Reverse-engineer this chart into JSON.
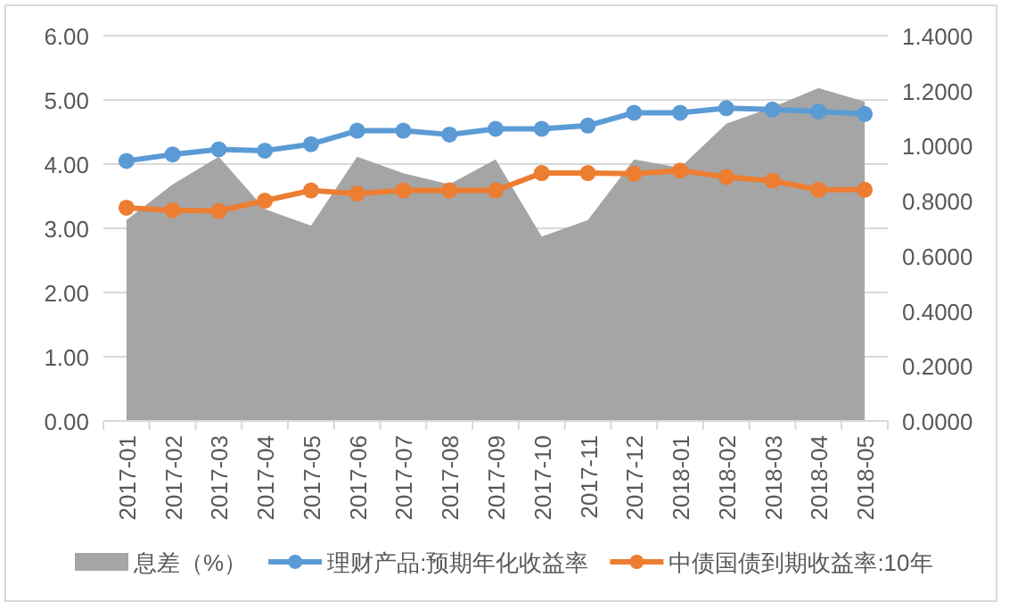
{
  "chart_data": {
    "type": "line",
    "categories": [
      "2017-01",
      "2017-02",
      "2017-03",
      "2017-04",
      "2017-05",
      "2017-06",
      "2017-07",
      "2017-08",
      "2017-09",
      "2017-10",
      "2017-11",
      "2017-12",
      "2018-01",
      "2018-02",
      "2018-03",
      "2018-04",
      "2018-05"
    ],
    "series": [
      {
        "name": "息差（%）",
        "type": "area",
        "axis": "y2",
        "marker": "none",
        "color": "#a5a5a5",
        "values": [
          0.73,
          0.86,
          0.96,
          0.77,
          0.71,
          0.96,
          0.9,
          0.86,
          0.95,
          0.67,
          0.73,
          0.95,
          0.92,
          1.08,
          1.14,
          1.21,
          1.16
        ]
      },
      {
        "name": "理财产品:预期年化收益率",
        "color": "#5b9bd5",
        "values": [
          4.05,
          4.15,
          4.23,
          4.21,
          4.31,
          4.52,
          4.52,
          4.46,
          4.55,
          4.55,
          4.6,
          4.8,
          4.8,
          4.87,
          4.85,
          4.82,
          4.78
        ]
      },
      {
        "name": "中债国债到期收益率:10年",
        "color": "#ed7d31",
        "values": [
          3.32,
          3.28,
          3.27,
          3.43,
          3.59,
          3.54,
          3.59,
          3.59,
          3.59,
          3.86,
          3.86,
          3.85,
          3.9,
          3.8,
          3.74,
          3.6,
          3.6
        ]
      }
    ],
    "ylim": [
      0,
      6
    ],
    "yticks": [
      {
        "value": 0,
        "label": "0.00"
      },
      {
        "value": 1,
        "label": "1.00"
      },
      {
        "value": 2,
        "label": "2.00"
      },
      {
        "value": 3,
        "label": "3.00"
      },
      {
        "value": 4,
        "label": "4.00"
      },
      {
        "value": 5,
        "label": "5.00"
      },
      {
        "value": 6,
        "label": "6.00"
      }
    ],
    "y2lim": [
      0,
      1.4
    ],
    "y2ticks": [
      {
        "value": 0,
        "label": "0.0000"
      },
      {
        "value": 0.2,
        "label": "0.2000"
      },
      {
        "value": 0.4,
        "label": "0.4000"
      },
      {
        "value": 0.6,
        "label": "0.6000"
      },
      {
        "value": 0.8,
        "label": "0.8000"
      },
      {
        "value": 1,
        "label": "1.0000"
      },
      {
        "value": 1.2,
        "label": "1.2000"
      },
      {
        "value": 1.4,
        "label": "1.4000"
      }
    ],
    "grid": "y",
    "legend": "bottom",
    "marker": "circle",
    "line_style": "solid"
  }
}
